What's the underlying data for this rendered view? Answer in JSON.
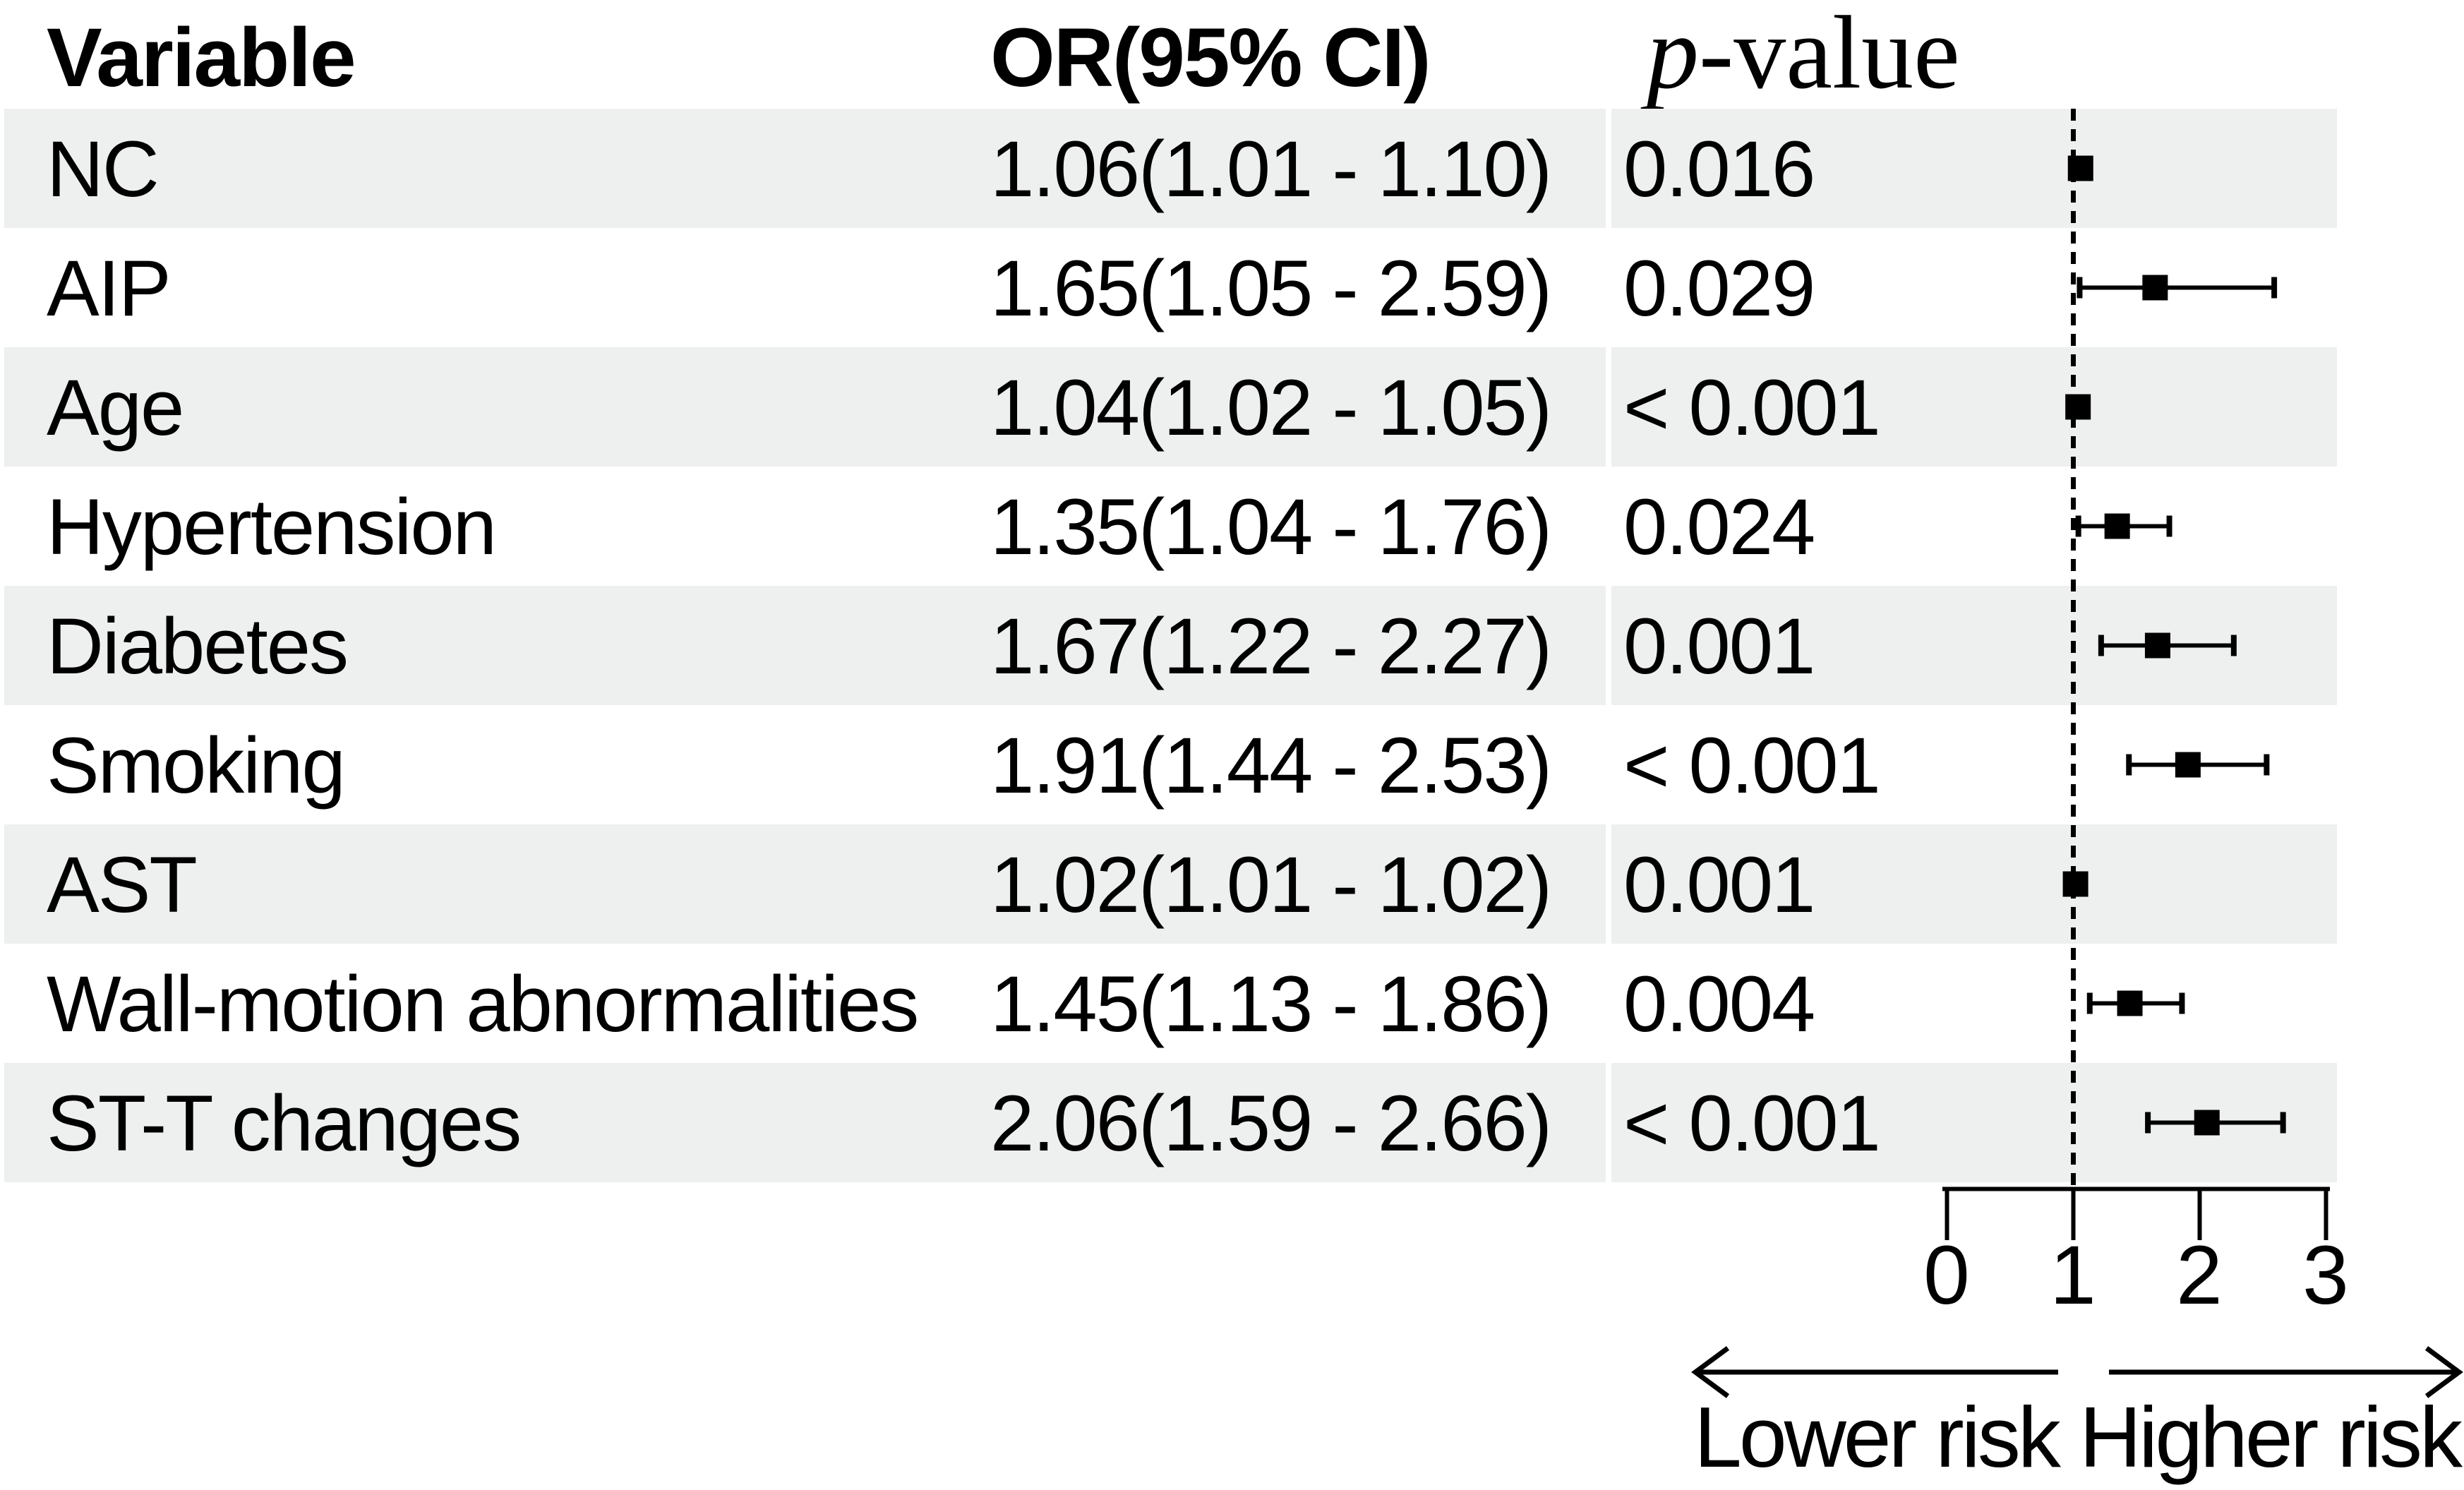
{
  "table": {
    "headers": {
      "variable": "Variable",
      "or_ci": "OR(95% CI)",
      "p_italic": "p",
      "p_rest": "-value"
    }
  },
  "chart_data": {
    "type": "forest",
    "columns": [
      "Variable",
      "OR(95% CI)",
      "p-value"
    ],
    "rows": [
      {
        "variable": "NC",
        "or_ci": "1.06(1.01 - 1.10)",
        "p": "0.016",
        "or": 1.06,
        "ci_low": 1.01,
        "ci_high": 1.1
      },
      {
        "variable": "AIP",
        "or_ci": "1.65(1.05 - 2.59)",
        "p": "0.029",
        "or": 1.65,
        "ci_low": 1.05,
        "ci_high": 2.59
      },
      {
        "variable": "Age",
        "or_ci": "1.04(1.02 - 1.05)",
        "p": "< 0.001",
        "or": 1.04,
        "ci_low": 1.02,
        "ci_high": 1.05
      },
      {
        "variable": "Hypertension",
        "or_ci": "1.35(1.04 - 1.76)",
        "p": "0.024",
        "or": 1.35,
        "ci_low": 1.04,
        "ci_high": 1.76
      },
      {
        "variable": "Diabetes",
        "or_ci": "1.67(1.22 - 2.27)",
        "p": "0.001",
        "or": 1.67,
        "ci_low": 1.22,
        "ci_high": 2.27
      },
      {
        "variable": "Smoking",
        "or_ci": "1.91(1.44 - 2.53)",
        "p": "< 0.001",
        "or": 1.91,
        "ci_low": 1.44,
        "ci_high": 2.53
      },
      {
        "variable": "AST",
        "or_ci": "1.02(1.01 - 1.02)",
        "p": "0.001",
        "or": 1.02,
        "ci_low": 1.01,
        "ci_high": 1.02
      },
      {
        "variable": "Wall-motion abnormalities",
        "or_ci": "1.45(1.13 - 1.86)",
        "p": "0.004",
        "or": 1.45,
        "ci_low": 1.13,
        "ci_high": 1.86
      },
      {
        "variable": "ST-T changes",
        "or_ci": "2.06(1.59 - 2.66)",
        "p": "< 0.001",
        "or": 2.06,
        "ci_low": 1.59,
        "ci_high": 2.66
      }
    ],
    "x_ticks": [
      0,
      1,
      2,
      3
    ],
    "xlim": [
      0,
      3
    ],
    "reference_line": 1,
    "marker": "square",
    "grid": false,
    "annotations": {
      "lower": "Lower risk",
      "higher": "Higher risk"
    }
  },
  "colors": {
    "stripe": "#edf0ee",
    "ink": "#000000",
    "background": "#ffffff"
  }
}
